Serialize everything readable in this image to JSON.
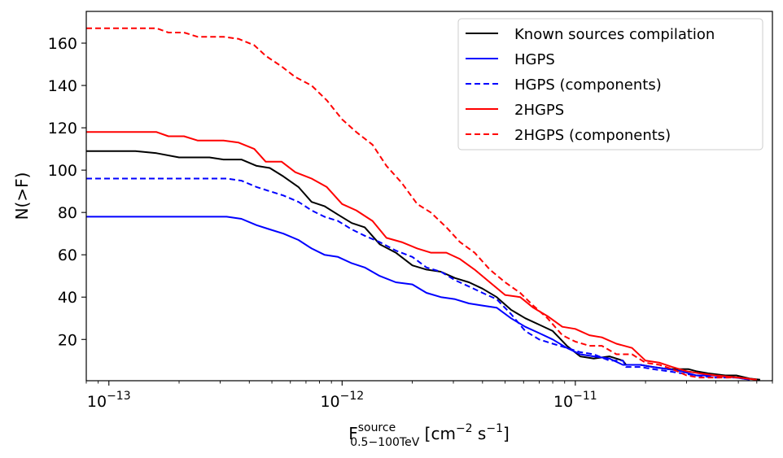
{
  "chart_data": {
    "type": "line",
    "title": "",
    "xscale": "log",
    "xlim": [
      8e-14,
      7e-11
    ],
    "ylim": [
      0.5,
      175
    ],
    "xticks": [
      {
        "value": 1e-13,
        "base": "10",
        "exp": "−13"
      },
      {
        "value": 1e-12,
        "base": "10",
        "exp": "−12"
      },
      {
        "value": 1e-11,
        "base": "10",
        "exp": "−11"
      }
    ],
    "yticks": [
      20,
      40,
      60,
      80,
      100,
      120,
      140,
      160
    ],
    "xlabel": {
      "main": "F",
      "subscript": "0.5−100TeV",
      "superscript": "source",
      "units": " [cm",
      "units_exp1": "−2",
      "units_mid": " s",
      "units_exp2": "−1",
      "units_end": "]"
    },
    "ylabel": "N(>F)",
    "legend_position": "top-right",
    "series": [
      {
        "name": "Known sources compilation",
        "color": "#000000",
        "dash": "solid",
        "points": [
          [
            8e-14,
            109
          ],
          [
            1.3e-13,
            109
          ],
          [
            1.6e-13,
            108
          ],
          [
            2e-13,
            106
          ],
          [
            2.7e-13,
            106
          ],
          [
            3.1e-13,
            105
          ],
          [
            3.7e-13,
            105
          ],
          [
            4.3e-13,
            102
          ],
          [
            4.9e-13,
            101
          ],
          [
            5.6e-13,
            97
          ],
          [
            6.5e-13,
            92
          ],
          [
            7.4e-13,
            85
          ],
          [
            8.4e-13,
            83
          ],
          [
            9.6e-13,
            79
          ],
          [
            1.1e-12,
            75
          ],
          [
            1.25e-12,
            73
          ],
          [
            1.45e-12,
            65
          ],
          [
            1.7e-12,
            61
          ],
          [
            2e-12,
            55
          ],
          [
            2.3e-12,
            53
          ],
          [
            2.65e-12,
            52
          ],
          [
            3.05e-12,
            49
          ],
          [
            3.5e-12,
            47
          ],
          [
            4e-12,
            44
          ],
          [
            4.6e-12,
            40
          ],
          [
            5.3e-12,
            34
          ],
          [
            6.1e-12,
            30
          ],
          [
            7e-12,
            27
          ],
          [
            8e-12,
            24
          ],
          [
            9.2e-12,
            17
          ],
          [
            1.05e-11,
            12
          ],
          [
            1.2e-11,
            11
          ],
          [
            1.4e-11,
            12
          ],
          [
            1.6e-11,
            10
          ],
          [
            1.65e-11,
            8
          ],
          [
            1.9e-11,
            8
          ],
          [
            2.15e-11,
            7
          ],
          [
            2.5e-11,
            6
          ],
          [
            2.85e-11,
            6
          ],
          [
            3.05e-11,
            6
          ],
          [
            3.3e-11,
            5
          ],
          [
            3.7e-11,
            4
          ],
          [
            4.4e-11,
            3
          ],
          [
            4.9e-11,
            3
          ],
          [
            5.6e-11,
            1.5
          ],
          [
            6.2e-11,
            1
          ]
        ]
      },
      {
        "name": "HGPS",
        "color": "#0000ff",
        "dash": "solid",
        "points": [
          [
            8e-14,
            78
          ],
          [
            3.2e-13,
            78
          ],
          [
            3.7e-13,
            77
          ],
          [
            4.3e-13,
            74
          ],
          [
            4.9e-13,
            72
          ],
          [
            5.6e-13,
            70
          ],
          [
            6.5e-13,
            67
          ],
          [
            7.4e-13,
            63
          ],
          [
            8.4e-13,
            60
          ],
          [
            9.6e-13,
            59
          ],
          [
            1.1e-12,
            56
          ],
          [
            1.25e-12,
            54
          ],
          [
            1.45e-12,
            50
          ],
          [
            1.7e-12,
            47
          ],
          [
            2e-12,
            46
          ],
          [
            2.3e-12,
            42
          ],
          [
            2.65e-12,
            40
          ],
          [
            3.05e-12,
            39
          ],
          [
            3.5e-12,
            37
          ],
          [
            4e-12,
            36
          ],
          [
            4.6e-12,
            35
          ],
          [
            5.3e-12,
            30
          ],
          [
            6.1e-12,
            26
          ],
          [
            7e-12,
            23
          ],
          [
            8e-12,
            20
          ],
          [
            9.2e-12,
            16
          ],
          [
            1.05e-11,
            13
          ],
          [
            1.2e-11,
            12
          ],
          [
            1.4e-11,
            11
          ],
          [
            1.6e-11,
            8
          ],
          [
            1.9e-11,
            8
          ],
          [
            2.15e-11,
            7
          ],
          [
            2.5e-11,
            6
          ],
          [
            2.85e-11,
            5
          ],
          [
            3.3e-11,
            3
          ],
          [
            3.9e-11,
            3
          ],
          [
            4.9e-11,
            2
          ],
          [
            5.6e-11,
            1
          ]
        ]
      },
      {
        "name": "HGPS (components)",
        "color": "#0000ff",
        "dash": "dashed",
        "points": [
          [
            8e-14,
            96
          ],
          [
            3.2e-13,
            96
          ],
          [
            3.7e-13,
            95
          ],
          [
            4.3e-13,
            92
          ],
          [
            4.9e-13,
            90
          ],
          [
            5.6e-13,
            88
          ],
          [
            6.5e-13,
            85
          ],
          [
            7.4e-13,
            81
          ],
          [
            8.4e-13,
            78
          ],
          [
            9.6e-13,
            76
          ],
          [
            1.1e-12,
            72
          ],
          [
            1.25e-12,
            69
          ],
          [
            1.45e-12,
            66
          ],
          [
            1.7e-12,
            62
          ],
          [
            2e-12,
            59
          ],
          [
            2.3e-12,
            54
          ],
          [
            2.65e-12,
            52
          ],
          [
            3.05e-12,
            48
          ],
          [
            3.5e-12,
            45
          ],
          [
            4e-12,
            42
          ],
          [
            4.6e-12,
            39
          ],
          [
            5.3e-12,
            32
          ],
          [
            6.1e-12,
            24
          ],
          [
            7e-12,
            20
          ],
          [
            8e-12,
            18
          ],
          [
            9.2e-12,
            16
          ],
          [
            1.05e-11,
            14
          ],
          [
            1.2e-11,
            13
          ],
          [
            1.4e-11,
            10
          ],
          [
            1.6e-11,
            10
          ],
          [
            1.65e-11,
            7
          ],
          [
            1.9e-11,
            7
          ],
          [
            2.15e-11,
            6
          ],
          [
            2.5e-11,
            5
          ],
          [
            2.85e-11,
            4
          ],
          [
            3.3e-11,
            3
          ],
          [
            3.9e-11,
            2
          ],
          [
            4.9e-11,
            2
          ],
          [
            5.6e-11,
            1
          ]
        ]
      },
      {
        "name": "2HGPS",
        "color": "#ff0000",
        "dash": "solid",
        "points": [
          [
            8e-14,
            118
          ],
          [
            1.6e-13,
            118
          ],
          [
            1.8e-13,
            116
          ],
          [
            2.1e-13,
            116
          ],
          [
            2.4e-13,
            114
          ],
          [
            3.1e-13,
            114
          ],
          [
            3.6e-13,
            113
          ],
          [
            4.2e-13,
            110
          ],
          [
            4.7e-13,
            104
          ],
          [
            5.5e-13,
            104
          ],
          [
            6.3e-13,
            99
          ],
          [
            7.4e-13,
            96
          ],
          [
            8.6e-13,
            92
          ],
          [
            1e-12,
            84
          ],
          [
            1.15e-12,
            81
          ],
          [
            1.35e-12,
            76
          ],
          [
            1.55e-12,
            68
          ],
          [
            1.8e-12,
            66
          ],
          [
            2.1e-12,
            63
          ],
          [
            2.4e-12,
            61
          ],
          [
            2.8e-12,
            61
          ],
          [
            3.2e-12,
            58
          ],
          [
            3.7e-12,
            53
          ],
          [
            4.3e-12,
            47
          ],
          [
            5e-12,
            41
          ],
          [
            5.8e-12,
            40
          ],
          [
            6.6e-12,
            35
          ],
          [
            7.6e-12,
            31
          ],
          [
            8.8e-12,
            26
          ],
          [
            1e-11,
            25
          ],
          [
            1.15e-11,
            22
          ],
          [
            1.3e-11,
            21
          ],
          [
            1.5e-11,
            18
          ],
          [
            1.75e-11,
            16
          ],
          [
            2e-11,
            10
          ],
          [
            2.3e-11,
            9
          ],
          [
            2.6e-11,
            7
          ],
          [
            3e-11,
            5
          ],
          [
            3.4e-11,
            4
          ],
          [
            4e-11,
            3
          ],
          [
            5e-11,
            2
          ],
          [
            6e-11,
            1
          ]
        ]
      },
      {
        "name": "2HGPS (components)",
        "color": "#ff0000",
        "dash": "dashed",
        "points": [
          [
            8e-14,
            167
          ],
          [
            1.6e-13,
            167
          ],
          [
            1.8e-13,
            165
          ],
          [
            2.1e-13,
            165
          ],
          [
            2.4e-13,
            163
          ],
          [
            3.1e-13,
            163
          ],
          [
            3.6e-13,
            162
          ],
          [
            4.2e-13,
            159
          ],
          [
            4.7e-13,
            154
          ],
          [
            5.5e-13,
            149
          ],
          [
            6.3e-13,
            144
          ],
          [
            7.4e-13,
            140
          ],
          [
            8.6e-13,
            133
          ],
          [
            1e-12,
            124
          ],
          [
            1.15e-12,
            118
          ],
          [
            1.35e-12,
            112
          ],
          [
            1.55e-12,
            102
          ],
          [
            1.8e-12,
            94
          ],
          [
            2.1e-12,
            84
          ],
          [
            2.4e-12,
            80
          ],
          [
            2.8e-12,
            73
          ],
          [
            3.2e-12,
            66
          ],
          [
            3.7e-12,
            61
          ],
          [
            4.3e-12,
            53
          ],
          [
            5e-12,
            47
          ],
          [
            5.8e-12,
            42
          ],
          [
            6.6e-12,
            36
          ],
          [
            7.6e-12,
            30
          ],
          [
            8.8e-12,
            22
          ],
          [
            1e-11,
            19
          ],
          [
            1.15e-11,
            17
          ],
          [
            1.3e-11,
            17
          ],
          [
            1.5e-11,
            13
          ],
          [
            1.75e-11,
            13
          ],
          [
            2e-11,
            9
          ],
          [
            2.3e-11,
            8
          ],
          [
            2.6e-11,
            6
          ],
          [
            3e-11,
            3
          ],
          [
            3.4e-11,
            2
          ],
          [
            4e-11,
            2
          ],
          [
            5e-11,
            2
          ],
          [
            6e-11,
            1
          ]
        ]
      }
    ]
  }
}
